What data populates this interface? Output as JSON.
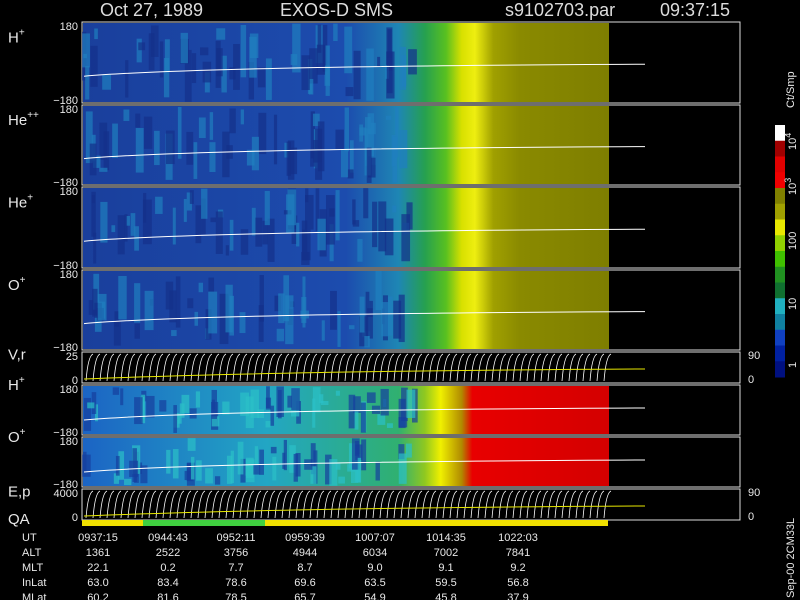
{
  "header": {
    "date": "Oct 27, 1989",
    "instrument": "EXOS-D SMS",
    "file": "s9102703.par",
    "time": "09:37:15"
  },
  "panels": [
    {
      "label": "H",
      "sup": "+",
      "top": "180",
      "bottom": "−180"
    },
    {
      "label": "He",
      "sup": "++",
      "top": "180",
      "bottom": "−180"
    },
    {
      "label": "He",
      "sup": "+",
      "top": "180",
      "bottom": "−180"
    },
    {
      "label": "O",
      "sup": "+",
      "top": "180",
      "bottom": "−180"
    },
    {
      "label": "V,r",
      "top": "25",
      "bottom": "0",
      "right_top": "90",
      "right_bottom": "0"
    },
    {
      "label": "H",
      "sup": "+",
      "top": "180",
      "bottom": "−180"
    },
    {
      "label": "O",
      "sup": "+",
      "top": "180",
      "bottom": "−180"
    },
    {
      "label": "E,p",
      "top": "4000",
      "bottom": "0",
      "right_top": "90",
      "right_bottom": "0"
    }
  ],
  "qa_label": "QA",
  "colorbar": {
    "unit": "Ct/Smp",
    "ticks": [
      {
        "base": "10",
        "exp": "4"
      },
      {
        "base": "10",
        "exp": "3"
      },
      {
        "base": "100"
      },
      {
        "base": "10"
      },
      {
        "base": "1"
      }
    ]
  },
  "table": {
    "rows": [
      {
        "label": "UT",
        "values": [
          "0937:15",
          "0944:43",
          "0952:11",
          "0959:39",
          "1007:07",
          "1014:35",
          "1022:03"
        ]
      },
      {
        "label": "ALT",
        "values": [
          "1361",
          "2522",
          "3756",
          "4944",
          "6034",
          "7002",
          "7841"
        ]
      },
      {
        "label": "MLT",
        "values": [
          "22.1",
          "0.2",
          "7.7",
          "8.7",
          "9.0",
          "9.1",
          "9.2"
        ]
      },
      {
        "label": "InLat",
        "values": [
          "63.0",
          "83.4",
          "78.6",
          "69.6",
          "63.5",
          "59.5",
          "56.8"
        ]
      },
      {
        "label": "MLat",
        "values": [
          "60.2",
          "81.6",
          "78.5",
          "65.7",
          "54.9",
          "45.8",
          "37.9"
        ]
      }
    ]
  },
  "footer": "Sep-00 2CM33L"
}
